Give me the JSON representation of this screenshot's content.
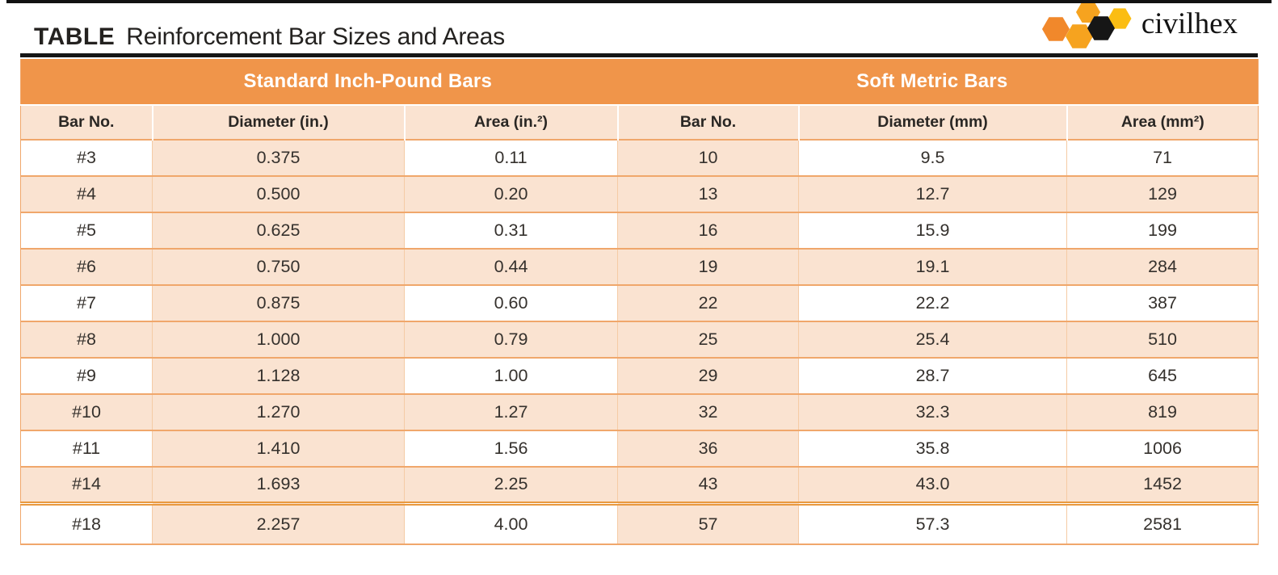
{
  "header": {
    "kicker": "TABLE",
    "title": "Reinforcement Bar Sizes and Areas"
  },
  "logo": {
    "text": "civilhex",
    "colors": {
      "orange": "#F1882B",
      "amber": "#F6A31F",
      "yellow": "#FBBD13",
      "black": "#161616"
    }
  },
  "table": {
    "groups": [
      {
        "label": "Standard Inch-Pound Bars"
      },
      {
        "label": "Soft Metric Bars"
      }
    ],
    "columns": [
      "Bar No.",
      "Diameter (in.)",
      "Area (in.²)",
      "Bar No.",
      "Diameter (mm)",
      "Area (mm²)"
    ],
    "column_keys": [
      "bar-no-inch",
      "diameter-in",
      "area-in2",
      "bar-no-metric",
      "diameter-mm",
      "area-mm2"
    ],
    "rows": [
      [
        "#3",
        "0.375",
        "0.11",
        "10",
        "9.5",
        "71"
      ],
      [
        "#4",
        "0.500",
        "0.20",
        "13",
        "12.7",
        "129"
      ],
      [
        "#5",
        "0.625",
        "0.31",
        "16",
        "15.9",
        "199"
      ],
      [
        "#6",
        "0.750",
        "0.44",
        "19",
        "19.1",
        "284"
      ],
      [
        "#7",
        "0.875",
        "0.60",
        "22",
        "22.2",
        "387"
      ],
      [
        "#8",
        "1.000",
        "0.79",
        "25",
        "25.4",
        "510"
      ],
      [
        "#9",
        "1.128",
        "1.00",
        "29",
        "28.7",
        "645"
      ],
      [
        "#10",
        "1.270",
        "1.27",
        "32",
        "32.3",
        "819"
      ],
      [
        "#11",
        "1.410",
        "1.56",
        "36",
        "35.8",
        "1006"
      ],
      [
        "#14",
        "1.693",
        "2.25",
        "43",
        "43.0",
        "1452"
      ],
      [
        "#18",
        "2.257",
        "4.00",
        "57",
        "57.3",
        "2581"
      ]
    ]
  },
  "colors": {
    "accent_orange": "#F0954A",
    "peach": "#FAE3D1",
    "row_line": "#F0A76B",
    "cell_line": "#F5CBA5",
    "double_line": "#E9993F"
  }
}
